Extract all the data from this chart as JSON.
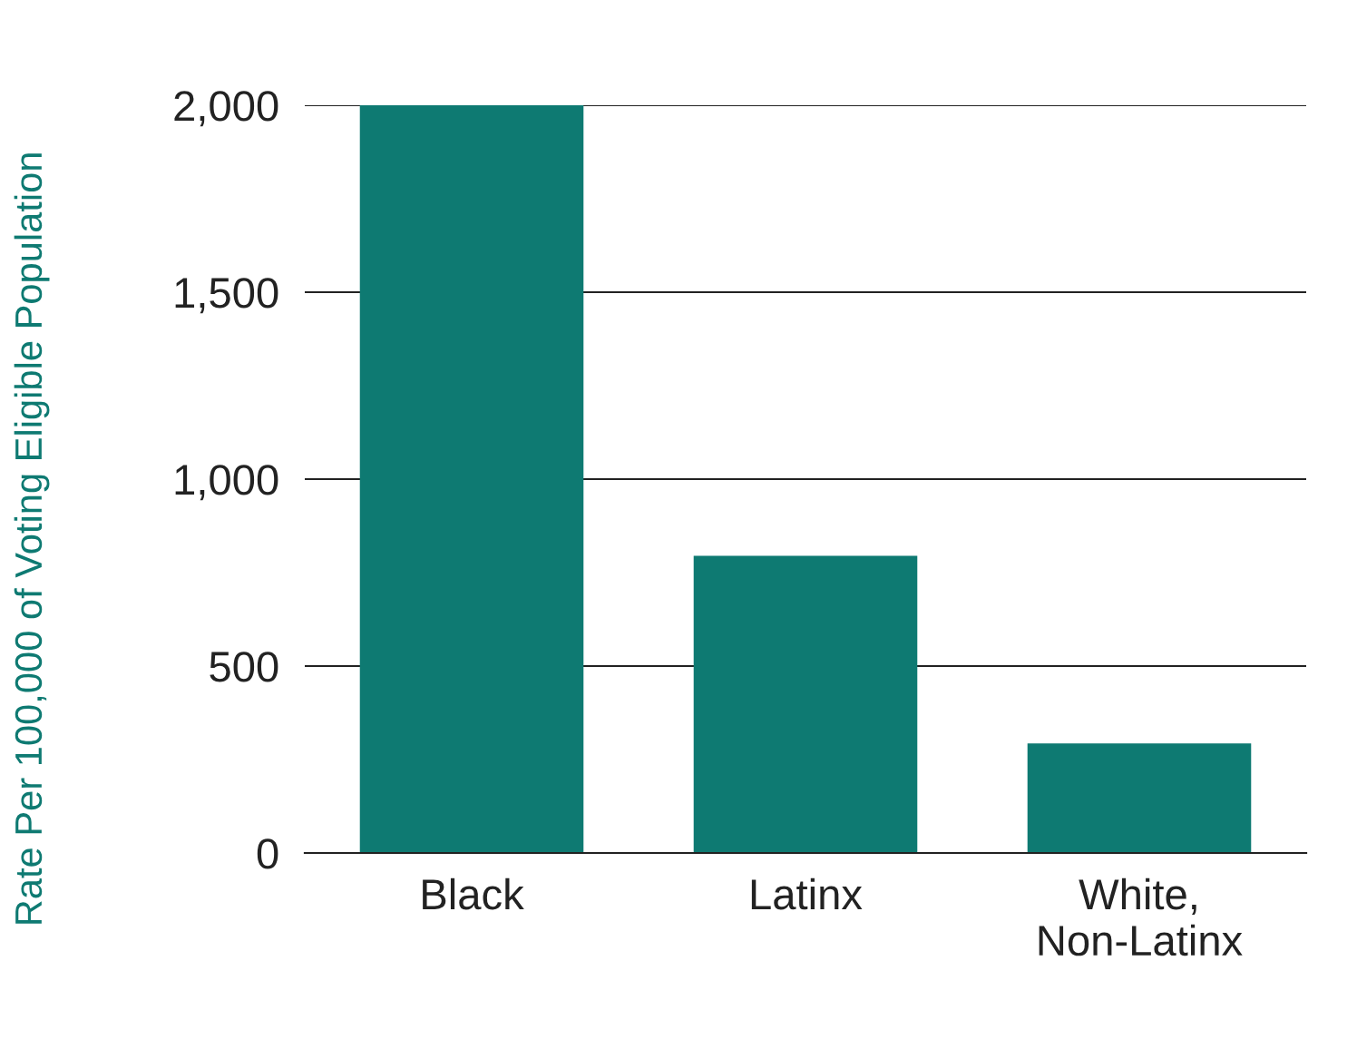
{
  "chart_data": {
    "type": "bar",
    "ylabel": "Rate Per 100,000 of Voting Eligible Population",
    "categories": [
      "Black",
      "Latinx",
      "White,\nNon-Latinx"
    ],
    "values": [
      2000,
      795,
      293
    ],
    "color": "#0e7a72",
    "ylim": [
      0,
      2000
    ],
    "yticks": [
      0,
      {
        "value": 500,
        "label": "500"
      },
      {
        "value": 1000,
        "label": "1,000"
      },
      {
        "value": 1500,
        "label": "1,500"
      },
      {
        "value": 2000,
        "label": "2,000"
      }
    ],
    "grid": "y",
    "legend": false
  }
}
